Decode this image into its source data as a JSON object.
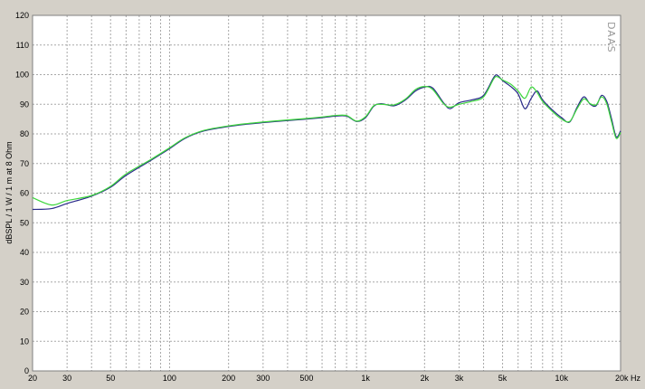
{
  "chart_data": {
    "type": "line",
    "title": "",
    "watermark": "DAAS",
    "ylabel": "dBSPL / 1 W / 1 m at 8 Ohm",
    "xlabel": "",
    "x_scale": "log",
    "xlim": [
      20,
      20000
    ],
    "ylim": [
      0,
      120
    ],
    "grid": true,
    "legend": "none",
    "x_ticks": [
      {
        "value": 20,
        "label": "20"
      },
      {
        "value": 30,
        "label": "30"
      },
      {
        "value": 50,
        "label": "50"
      },
      {
        "value": 100,
        "label": "100"
      },
      {
        "value": 200,
        "label": "200"
      },
      {
        "value": 300,
        "label": "300"
      },
      {
        "value": 500,
        "label": "500"
      },
      {
        "value": 1000,
        "label": "1k"
      },
      {
        "value": 2000,
        "label": "2k"
      },
      {
        "value": 3000,
        "label": "3k"
      },
      {
        "value": 5000,
        "label": "5k"
      },
      {
        "value": 10000,
        "label": "10k"
      },
      {
        "value": 20000,
        "label": "20k Hz"
      }
    ],
    "y_ticks": [
      0,
      10,
      20,
      30,
      40,
      50,
      60,
      70,
      80,
      90,
      100,
      110,
      120
    ],
    "colors": {
      "background": "#ffffff",
      "grid": "#a8a8a8",
      "frame": "#d4d0c8"
    },
    "series": [
      {
        "color": "#2a2a8a",
        "points": [
          [
            20,
            54.5
          ],
          [
            25,
            54.8
          ],
          [
            30,
            56.5
          ],
          [
            40,
            59
          ],
          [
            50,
            62
          ],
          [
            60,
            66
          ],
          [
            80,
            71
          ],
          [
            100,
            75
          ],
          [
            120,
            78.5
          ],
          [
            150,
            81
          ],
          [
            200,
            82.5
          ],
          [
            250,
            83.3
          ],
          [
            300,
            83.8
          ],
          [
            400,
            84.5
          ],
          [
            500,
            85
          ],
          [
            600,
            85.5
          ],
          [
            700,
            86
          ],
          [
            800,
            86
          ],
          [
            900,
            84.2
          ],
          [
            1000,
            85.5
          ],
          [
            1100,
            89.3
          ],
          [
            1200,
            90.2
          ],
          [
            1400,
            89.5
          ],
          [
            1600,
            91.5
          ],
          [
            1800,
            94.5
          ],
          [
            2000,
            95.8
          ],
          [
            2200,
            95.5
          ],
          [
            2500,
            90.5
          ],
          [
            2700,
            88.5
          ],
          [
            3000,
            90.5
          ],
          [
            3500,
            91.5
          ],
          [
            4000,
            93
          ],
          [
            4500,
            99
          ],
          [
            4700,
            99.8
          ],
          [
            5000,
            98
          ],
          [
            5500,
            96
          ],
          [
            6000,
            93.5
          ],
          [
            6500,
            88.5
          ],
          [
            7000,
            92
          ],
          [
            7500,
            94.5
          ],
          [
            8000,
            91.5
          ],
          [
            9000,
            88
          ],
          [
            10000,
            85.5
          ],
          [
            11000,
            84
          ],
          [
            12000,
            89
          ],
          [
            13000,
            92.5
          ],
          [
            14000,
            90
          ],
          [
            15000,
            89.5
          ],
          [
            16000,
            93
          ],
          [
            17000,
            91
          ],
          [
            18000,
            85
          ],
          [
            19000,
            79
          ],
          [
            20000,
            81
          ]
        ]
      },
      {
        "color": "#3dd63d",
        "points": [
          [
            20,
            58.5
          ],
          [
            25,
            56
          ],
          [
            30,
            57.5
          ],
          [
            40,
            59.2
          ],
          [
            50,
            62.3
          ],
          [
            60,
            66.5
          ],
          [
            80,
            71.3
          ],
          [
            100,
            75.3
          ],
          [
            120,
            78.7
          ],
          [
            150,
            81.2
          ],
          [
            200,
            82.7
          ],
          [
            250,
            83.5
          ],
          [
            300,
            84
          ],
          [
            400,
            84.7
          ],
          [
            500,
            85.2
          ],
          [
            600,
            85.7
          ],
          [
            700,
            86.2
          ],
          [
            800,
            86.2
          ],
          [
            900,
            84.3
          ],
          [
            1000,
            85.8
          ],
          [
            1100,
            89.5
          ],
          [
            1200,
            90
          ],
          [
            1400,
            89.8
          ],
          [
            1600,
            91.8
          ],
          [
            1800,
            95
          ],
          [
            2000,
            96
          ],
          [
            2200,
            95
          ],
          [
            2500,
            90.2
          ],
          [
            2700,
            89
          ],
          [
            3000,
            90
          ],
          [
            3500,
            91
          ],
          [
            4000,
            92.5
          ],
          [
            4500,
            98.5
          ],
          [
            4700,
            99.3
          ],
          [
            5000,
            98.2
          ],
          [
            5500,
            96.8
          ],
          [
            6000,
            94.5
          ],
          [
            6500,
            92
          ],
          [
            7000,
            95.8
          ],
          [
            7500,
            94
          ],
          [
            8000,
            91
          ],
          [
            9000,
            87.5
          ],
          [
            10000,
            85
          ],
          [
            11000,
            84.2
          ],
          [
            12000,
            88.5
          ],
          [
            13000,
            91.8
          ],
          [
            14000,
            90.2
          ],
          [
            15000,
            89.8
          ],
          [
            16000,
            92.5
          ],
          [
            17000,
            90.2
          ],
          [
            18000,
            84
          ],
          [
            19000,
            78.5
          ],
          [
            20000,
            80.5
          ]
        ]
      }
    ]
  }
}
